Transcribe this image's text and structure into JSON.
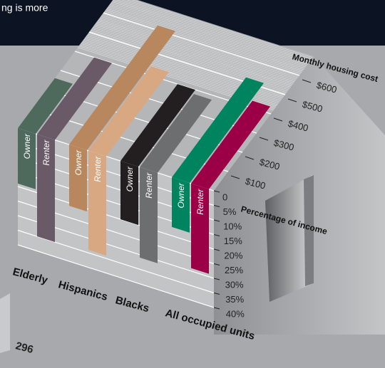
{
  "banner_text": "ng is more",
  "footer_text": "296",
  "chart_data": {
    "type": "bar",
    "cost_axis_label": "Monthly housing cost",
    "percent_axis_label": "Percentage of income",
    "categories": [
      "Elderly",
      "Hispanics",
      "Blacks",
      "All occupied units"
    ],
    "ylim": [
      0,
      40
    ],
    "yticks": [
      0,
      {
        "value": 5,
        "label": "5%"
      },
      {
        "value": 10,
        "label": "10%"
      },
      {
        "value": 15,
        "label": "15%"
      },
      {
        "value": 20,
        "label": "20%"
      },
      {
        "value": 25,
        "label": "25%"
      },
      {
        "value": 30,
        "label": "30%"
      },
      {
        "value": 35,
        "label": "35%"
      },
      {
        "value": 40,
        "label": "40%"
      }
    ],
    "y2lim": [
      0,
      700
    ],
    "y2ticks": [
      {
        "value": 100,
        "label": "$100"
      },
      {
        "value": 200,
        "label": "$200"
      },
      {
        "value": 300,
        "label": "$300"
      },
      {
        "value": 400,
        "label": "$400"
      },
      {
        "value": 500,
        "label": "$500"
      },
      {
        "value": 600,
        "label": "$600"
      }
    ],
    "series": [
      {
        "name": "Owner",
        "colors": [
          "#4e6a5c",
          "#b8875e",
          "#231f20",
          "#00845f"
        ],
        "values": [
          19,
          21,
          20,
          17
        ],
        "cost_values": [
          260,
          620,
          400,
          520
        ]
      },
      {
        "name": "Renter",
        "colors": [
          "#6a5a68",
          "#d8a882",
          "#6d6e70",
          "#9b0046"
        ],
        "values": [
          35,
          34,
          31,
          29
        ],
        "cost_values": [
          400,
          440,
          380,
          430
        ]
      }
    ]
  }
}
